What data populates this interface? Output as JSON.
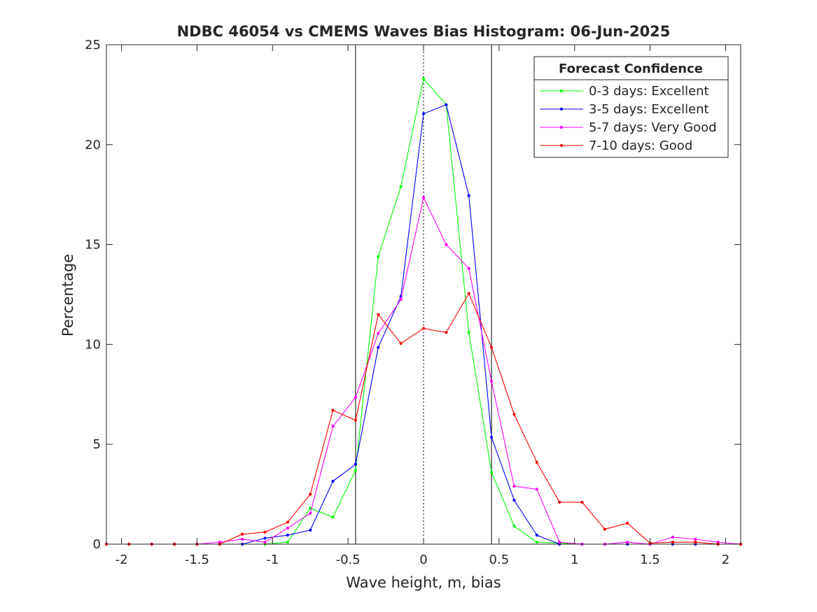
{
  "chart_data": {
    "type": "line",
    "title": "NDBC 46054 vs CMEMS Waves Bias Histogram: 06-Jun-2025",
    "xlabel": "Wave height, m, bias",
    "ylabel": "Percentage",
    "xlim": [
      -2.1,
      2.1
    ],
    "ylim": [
      0,
      25
    ],
    "xticks": [
      -2,
      -1.5,
      -1,
      -0.5,
      0,
      0.5,
      1,
      1.5,
      2
    ],
    "xtick_labels": [
      "-2",
      "-1.5",
      "-1",
      "-0.5",
      "0",
      "0.5",
      "1",
      "1.5",
      "2"
    ],
    "yticks": [
      0,
      5,
      10,
      15,
      20,
      25
    ],
    "ytick_labels": [
      "0",
      "5",
      "10",
      "15",
      "20",
      "25"
    ],
    "grid": false,
    "legend": {
      "title": "Forecast Confidence",
      "position": "top-right"
    },
    "reference_lines": [
      {
        "x": -0.45,
        "style": "solid",
        "color": "#000000"
      },
      {
        "x": 0,
        "style": "dotted",
        "color": "#000000"
      },
      {
        "x": 0.45,
        "style": "solid",
        "color": "#000000"
      }
    ],
    "x": [
      -2.1,
      -1.95,
      -1.8,
      -1.65,
      -1.5,
      -1.35,
      -1.2,
      -1.05,
      -0.9,
      -0.75,
      -0.6,
      -0.45,
      -0.3,
      -0.15,
      0,
      0.15,
      0.3,
      0.45,
      0.6,
      0.75,
      0.9,
      1.05,
      1.2,
      1.35,
      1.5,
      1.65,
      1.8,
      1.95,
      2.1
    ],
    "series": [
      {
        "name": "0-3 days: Excellent",
        "color": "#00ff00",
        "values": [
          0,
          0,
          0,
          0,
          0,
          0,
          0,
          0,
          0.1,
          1.8,
          1.35,
          3.7,
          14.4,
          17.9,
          23.3,
          22.0,
          10.6,
          3.6,
          0.9,
          0.1,
          0.05,
          0,
          0,
          0,
          0,
          0,
          0,
          0,
          0
        ]
      },
      {
        "name": "3-5 days: Excellent",
        "color": "#0000ff",
        "values": [
          0,
          0,
          0,
          0,
          0,
          0,
          0,
          0.3,
          0.45,
          0.7,
          3.15,
          4.0,
          9.85,
          12.4,
          21.55,
          22.0,
          17.45,
          5.35,
          2.2,
          0.45,
          0,
          0,
          0,
          0,
          0,
          0,
          0,
          0,
          0
        ]
      },
      {
        "name": "5-7 days: Very Good",
        "color": "#ff00ff",
        "values": [
          0,
          0,
          0,
          0,
          0,
          0.1,
          0.25,
          0.1,
          0.8,
          1.55,
          5.9,
          7.35,
          10.55,
          12.25,
          17.35,
          15.0,
          13.8,
          8.15,
          2.9,
          2.75,
          0.1,
          0,
          0,
          0.1,
          0,
          0.35,
          0.25,
          0.1,
          0
        ]
      },
      {
        "name": "7-10 days: Good",
        "color": "#ff0000",
        "values": [
          0,
          0,
          0,
          0,
          0,
          0,
          0.5,
          0.6,
          1.1,
          2.5,
          6.7,
          6.2,
          11.5,
          10.05,
          10.8,
          10.6,
          12.55,
          9.85,
          6.5,
          4.1,
          2.1,
          2.1,
          0.75,
          1.05,
          0.05,
          0.1,
          0.1,
          0,
          0
        ]
      }
    ]
  }
}
